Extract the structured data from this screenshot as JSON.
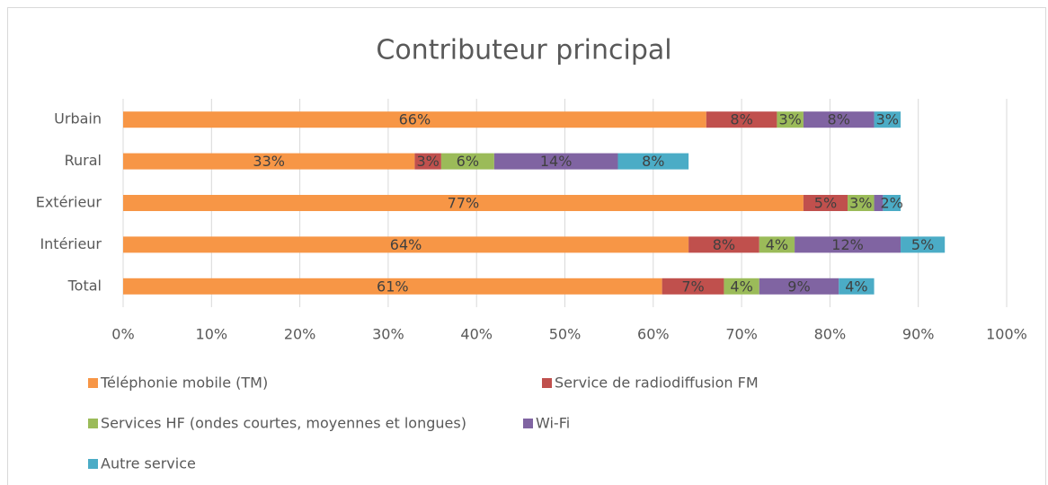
{
  "chart_data": {
    "type": "stacked-barh",
    "title": "Contributeur principal",
    "categories": [
      "Urbain",
      "Rural",
      "Extérieur",
      "Intérieur",
      "Total"
    ],
    "series": [
      {
        "name": "Téléphonie mobile (TM)",
        "color": "#f79646",
        "values": [
          66,
          33,
          77,
          64,
          61
        ],
        "value_labels": [
          "66%",
          "33%",
          "77%",
          "64%",
          "61%"
        ]
      },
      {
        "name": "Service de radiodiffusion FM",
        "color": "#c0504d",
        "values": [
          8,
          3,
          5,
          8,
          7
        ],
        "value_labels": [
          "8%",
          "3%",
          "5%",
          "8%",
          "7%"
        ]
      },
      {
        "name": "Services HF (ondes courtes, moyennes et longues)",
        "color": "#9bbb59",
        "values": [
          3,
          6,
          3,
          4,
          4
        ],
        "value_labels": [
          "3%",
          "6%",
          "3%",
          "4%",
          "4%"
        ]
      },
      {
        "name": "Wi-Fi",
        "color": "#8064a2",
        "values": [
          8,
          14,
          1,
          12,
          9
        ],
        "value_labels": [
          "8%",
          "14%",
          null,
          "12%",
          "9%"
        ]
      },
      {
        "name": "Autre service",
        "color": "#4bacc6",
        "values": [
          3,
          8,
          2,
          5,
          4
        ],
        "value_labels": [
          "3%",
          "8%",
          "2%",
          "5%",
          "4%"
        ]
      }
    ],
    "xlim": [
      0,
      100
    ],
    "xticks": [
      {
        "value": 0,
        "label": "0%"
      },
      {
        "value": 10,
        "label": "10%"
      },
      {
        "value": 20,
        "label": "20%"
      },
      {
        "value": 30,
        "label": "30%"
      },
      {
        "value": 40,
        "label": "40%"
      },
      {
        "value": 50,
        "label": "50%"
      },
      {
        "value": 60,
        "label": "60%"
      },
      {
        "value": 70,
        "label": "70%"
      },
      {
        "value": 80,
        "label": "80%"
      },
      {
        "value": 90,
        "label": "90%"
      },
      {
        "value": 100,
        "label": "100%"
      }
    ],
    "grid": true,
    "legend": "bottom"
  }
}
